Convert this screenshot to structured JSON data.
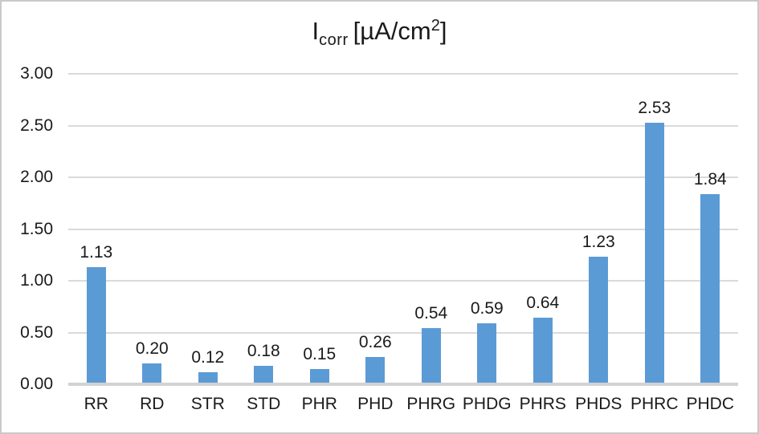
{
  "chart_data": {
    "type": "bar",
    "title": "Icorr [µA/cm²]",
    "title_parts": {
      "main": "I",
      "sub": "corr",
      "unit_pre": "[µA/cm",
      "sup": "2",
      "unit_post": "]"
    },
    "categories": [
      "RR",
      "RD",
      "STR",
      "STD",
      "PHR",
      "PHD",
      "PHRG",
      "PHDG",
      "PHRS",
      "PHDS",
      "PHRC",
      "PHDC"
    ],
    "values": [
      1.13,
      0.2,
      0.12,
      0.18,
      0.15,
      0.26,
      0.54,
      0.59,
      0.64,
      1.23,
      2.53,
      1.84
    ],
    "value_labels": [
      "1.13",
      "0.20",
      "0.12",
      "0.18",
      "0.15",
      "0.26",
      "0.54",
      "0.59",
      "0.64",
      "1.23",
      "2.53",
      "1.84"
    ],
    "y_ticks": [
      "0.00",
      "0.50",
      "1.00",
      "1.50",
      "2.00",
      "2.50",
      "3.00"
    ],
    "ylim": [
      0,
      3
    ],
    "xlabel": "",
    "ylabel": "",
    "grid": true,
    "legend_position": "none",
    "bar_color": "#5B9BD5",
    "gridline_color": "#DADADA",
    "axis_line_color": "#D2D2D2",
    "text_color": "#1A1A1A",
    "frame_color": "#C9C9C9"
  }
}
